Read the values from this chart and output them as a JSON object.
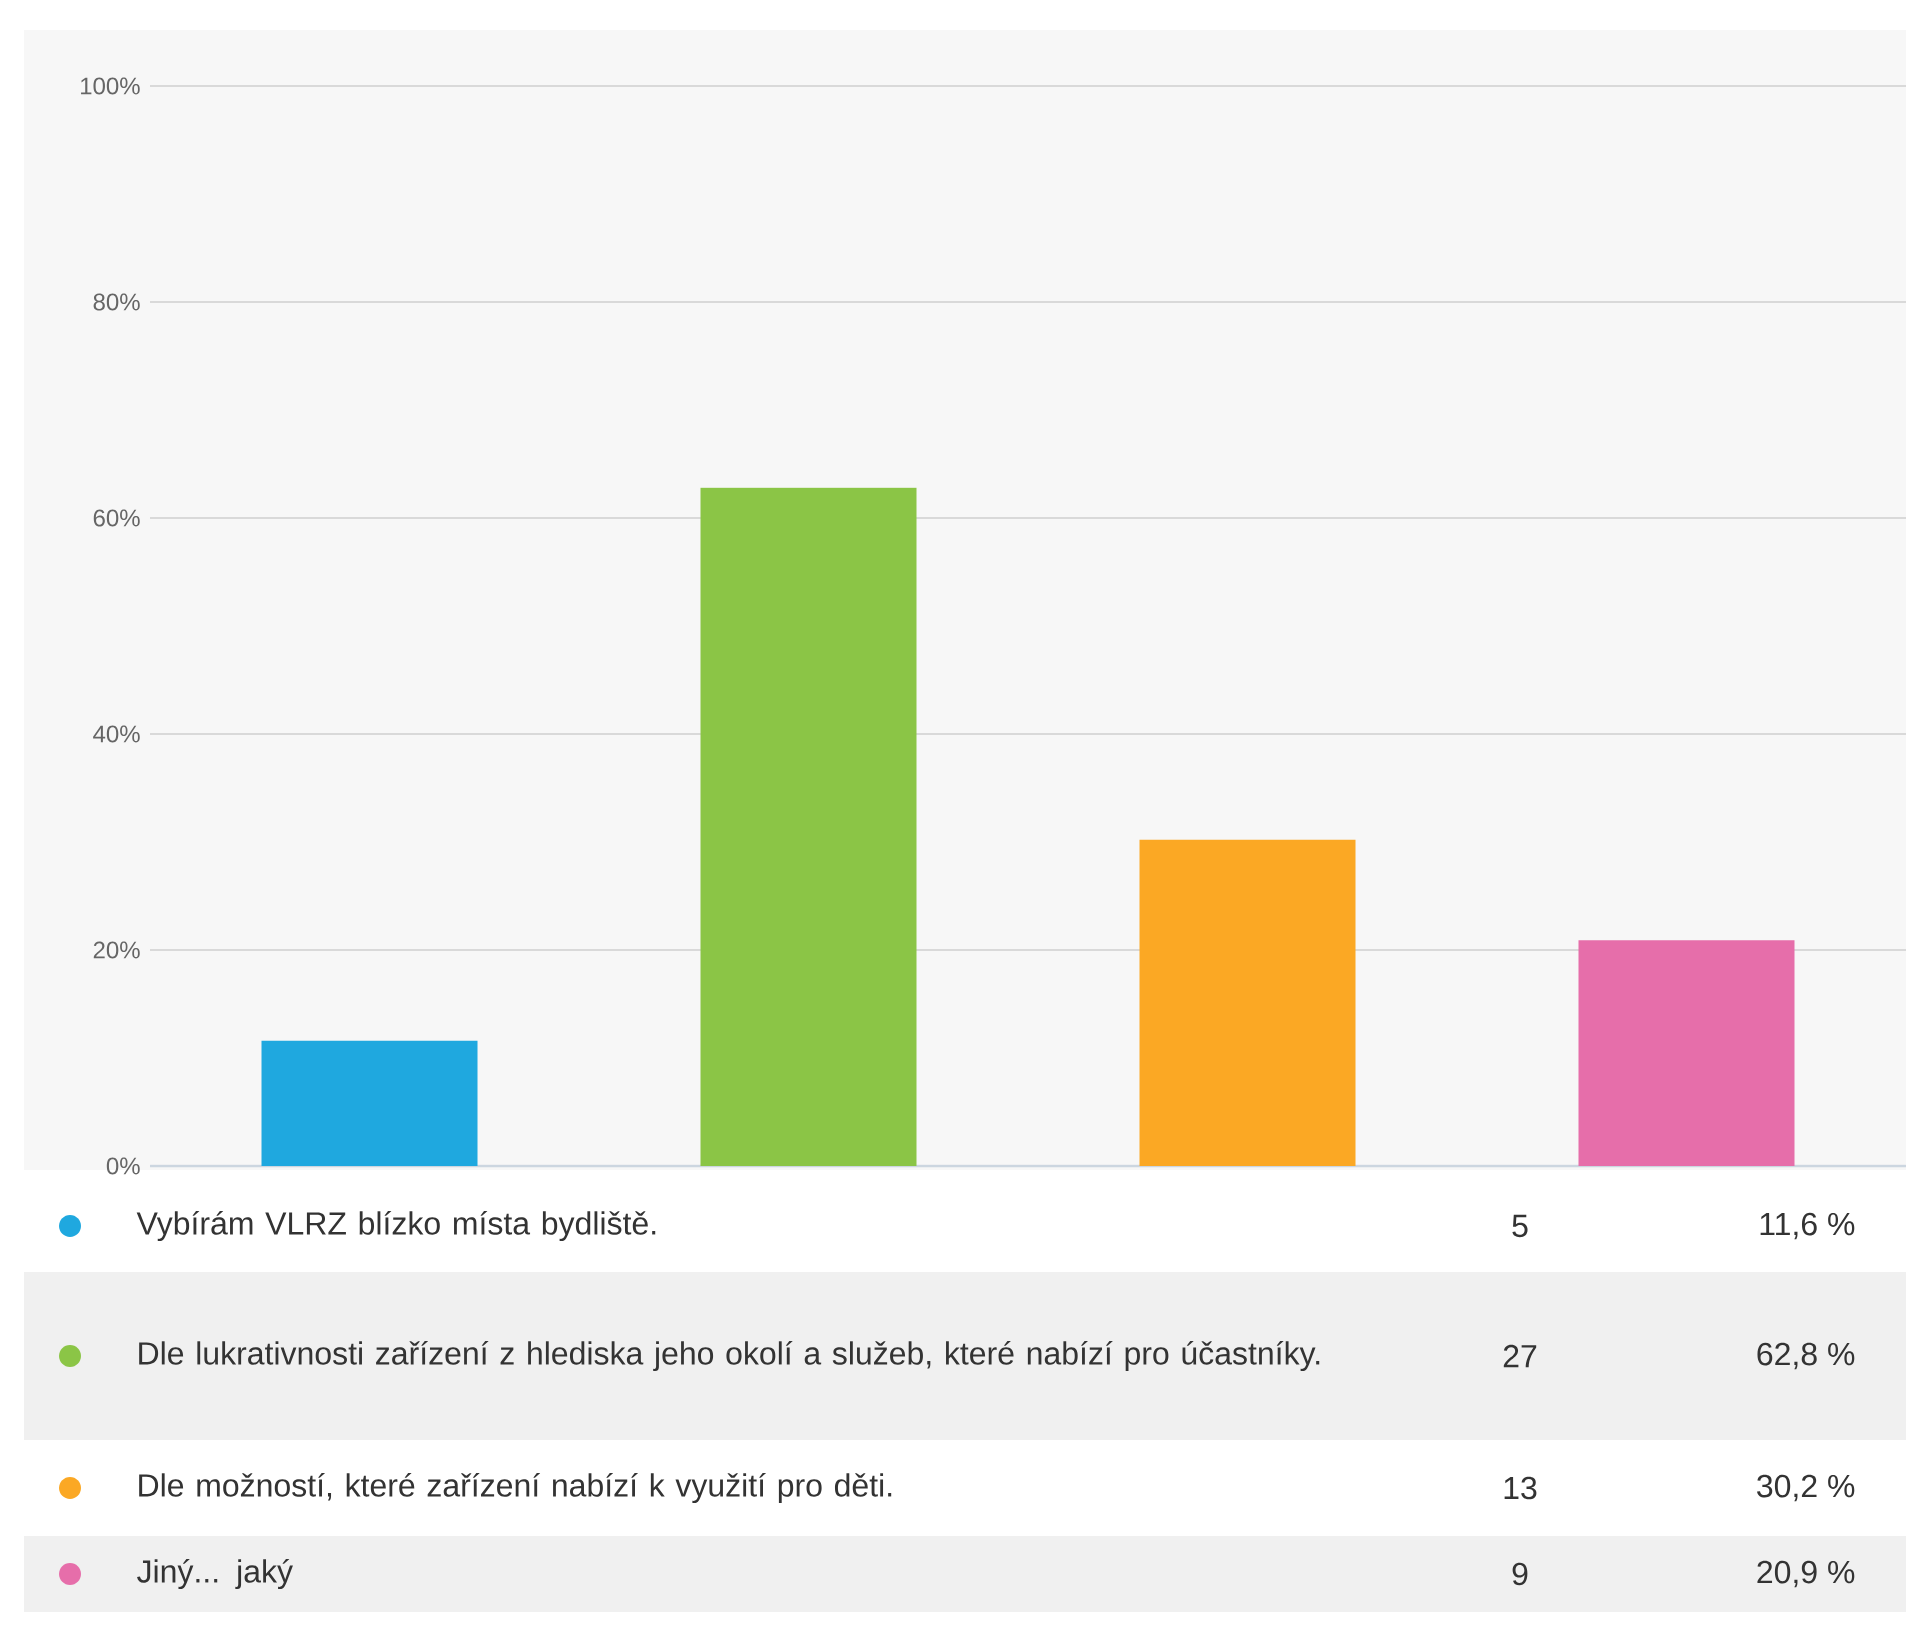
{
  "chart_data": {
    "type": "bar",
    "categories": [
      null,
      null,
      null,
      null
    ],
    "series": [
      {
        "name": "Vybírám VLRZ blízko místa bydliště.",
        "color": "#1fa8df",
        "values": [
          11.6,
          null,
          null,
          null
        ]
      },
      {
        "name": "Dle lukrativnosti zařízení z hlediska jeho okolí a služeb, které nabízí pro účastníky.",
        "color": "#8bc546",
        "values": [
          null,
          62.8,
          null,
          null
        ]
      },
      {
        "name": "Dle možností, které zařízení nabízí k využití pro děti.",
        "color": "#fba824",
        "values": [
          null,
          null,
          30.2,
          null
        ]
      },
      {
        "name": "Jiný... jaký",
        "color": "#e66eaa",
        "values": [
          null,
          null,
          null,
          20.9
        ]
      }
    ],
    "annotations": [
      "5",
      "11,6 %",
      "27",
      "62,8 %",
      "13",
      "30,2 %",
      "9",
      "20,9 %"
    ],
    "ylim": [
      0,
      100
    ],
    "yticks": [
      {
        "value": 0,
        "label": "0%"
      },
      {
        "value": 20,
        "label": "20%"
      },
      {
        "value": 40,
        "label": "40%"
      },
      {
        "value": 60,
        "label": "60%"
      },
      {
        "value": 80,
        "label": "80%"
      },
      {
        "value": 100,
        "label": "100%"
      }
    ],
    "grid": "y",
    "legend": "bottom",
    "tick_labels": "y"
  }
}
